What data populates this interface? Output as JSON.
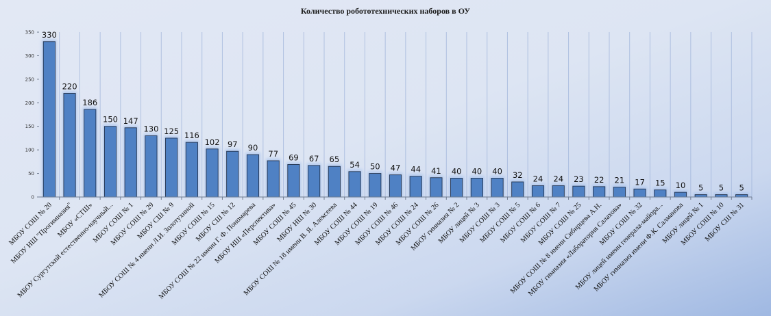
{
  "chart_data": {
    "type": "bar",
    "title": "Количество робототехнических наборов в ОУ",
    "xlabel": "",
    "ylabel": "",
    "ylim": [
      0,
      350
    ],
    "yticks": [
      0,
      50,
      100,
      150,
      200,
      250,
      300,
      350
    ],
    "grid": "vertical",
    "legend": "none",
    "colors": {
      "bar": "#4f81c4",
      "bar_edge": "#23344f",
      "grid": "#9bb1d8",
      "glow": "#aac4ee"
    },
    "categories": [
      "МБОУ СОШ № 20",
      "МБОУ НШ \"Прогимназия\"",
      "МБОУ «СТШ»",
      "МБОУ Сургутский естественно-научный...",
      "МБОУ СОШ № 1",
      "МБОУ СОШ № 29",
      "МБОУ СШ № 9",
      "МБОУ СОШ № 4 имени Л.И. Золотухиной",
      "МБОУ СОШ № 15",
      "МБОУ СШ № 12",
      "МБОУ СОШ № 22 имени  Г. Ф. Пономарева",
      "МБОУ НШ «Перспектива»",
      "МБОУ СОШ № 45",
      "МБОУ НШ № 30",
      "МБОУ СОШ № 18 имени В. Я. Алексеева",
      "МБОУ СОШ № 44",
      "МБОУ СОШ № 19",
      "МБОУ СОШ № 46",
      "МБОУ СОШ № 24",
      "МБОУ СОШ № 26",
      "МБОУ гимназия № 2",
      "МБОУ лицей № 3",
      "МБОУ СОШ № 3",
      "МБОУ СОШ № 5",
      "МБОУ СОШ № 6",
      "МБОУ СОШ № 7",
      "МБОУ СОШ № 25",
      "МБОУ СОШ № 8 имени Сибирцева А.Н.",
      "МБОУ гимназия «Лаборатория Салахова»",
      "МБОУ СОШ № 32",
      "МБОУ  лицей имени  генерала-майора...",
      "МБОУ гимназия имени Ф.К. Салманова",
      "МБОУ лицей № 1",
      "МБОУ СОШ № 10",
      "МБОУ СШ № 31"
    ],
    "values": [
      330,
      220,
      186,
      150,
      147,
      130,
      125,
      116,
      102,
      97,
      90,
      77,
      69,
      67,
      65,
      54,
      50,
      47,
      44,
      41,
      40,
      40,
      40,
      32,
      24,
      24,
      23,
      22,
      21,
      17,
      15,
      10,
      5,
      5,
      5
    ]
  }
}
